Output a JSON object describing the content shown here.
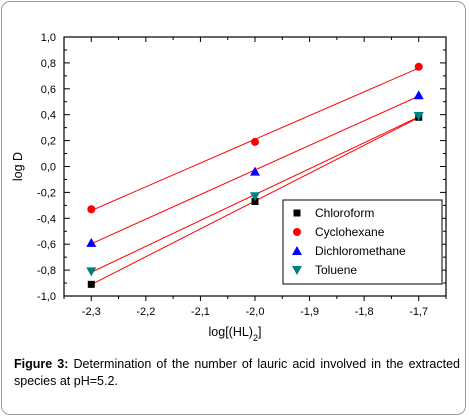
{
  "chart_data": {
    "type": "scatter",
    "title": "",
    "xlabel": "log[(HL)",
    "xlabel_sub": "2",
    "xlabel_close": "]",
    "ylabel": "log D",
    "xlim": [
      -2.35,
      -1.65
    ],
    "ylim": [
      -1.0,
      1.0
    ],
    "xticks": [
      -2.3,
      -2.2,
      -2.1,
      -2.0,
      -1.9,
      -1.8,
      -1.7
    ],
    "xtick_labels": [
      "-2,3",
      "-2,2",
      "-2,1",
      "-2,0",
      "-1,9",
      "-1,8",
      "-1,7"
    ],
    "yticks": [
      -1.0,
      -0.8,
      -0.6,
      -0.4,
      -0.2,
      0.0,
      0.2,
      0.4,
      0.6,
      0.8,
      1.0
    ],
    "ytick_labels": [
      "-1,0",
      "-0,8",
      "-0,6",
      "-0,4",
      "-0,2",
      "0,0",
      "0,2",
      "0,4",
      "0,6",
      "0,8",
      "1,0"
    ],
    "fit_line_color": "#ff0000",
    "legend_position": "bottom-right",
    "series": [
      {
        "name": "Chloroform",
        "marker": "square",
        "color": "#000000",
        "x": [
          -2.3,
          -2.0,
          -1.7
        ],
        "y": [
          -0.91,
          -0.27,
          0.38
        ]
      },
      {
        "name": "Cyclohexane",
        "marker": "circle",
        "color": "#ff0000",
        "x": [
          -2.3,
          -2.0,
          -1.7
        ],
        "y": [
          -0.33,
          0.19,
          0.77
        ]
      },
      {
        "name": "Dichloromethane",
        "marker": "triangle-up",
        "color": "#0000ff",
        "x": [
          -2.3,
          -2.0,
          -1.7
        ],
        "y": [
          -0.59,
          -0.04,
          0.55
        ]
      },
      {
        "name": "Toluene",
        "marker": "triangle-down",
        "color": "#008080",
        "x": [
          -2.3,
          -2.0,
          -1.7
        ],
        "y": [
          -0.81,
          -0.23,
          0.39
        ]
      }
    ]
  },
  "caption": {
    "label": "Figure 3:",
    "text": " Determination of the number of lauric acid involved in the extracted species at pH=5.2."
  }
}
